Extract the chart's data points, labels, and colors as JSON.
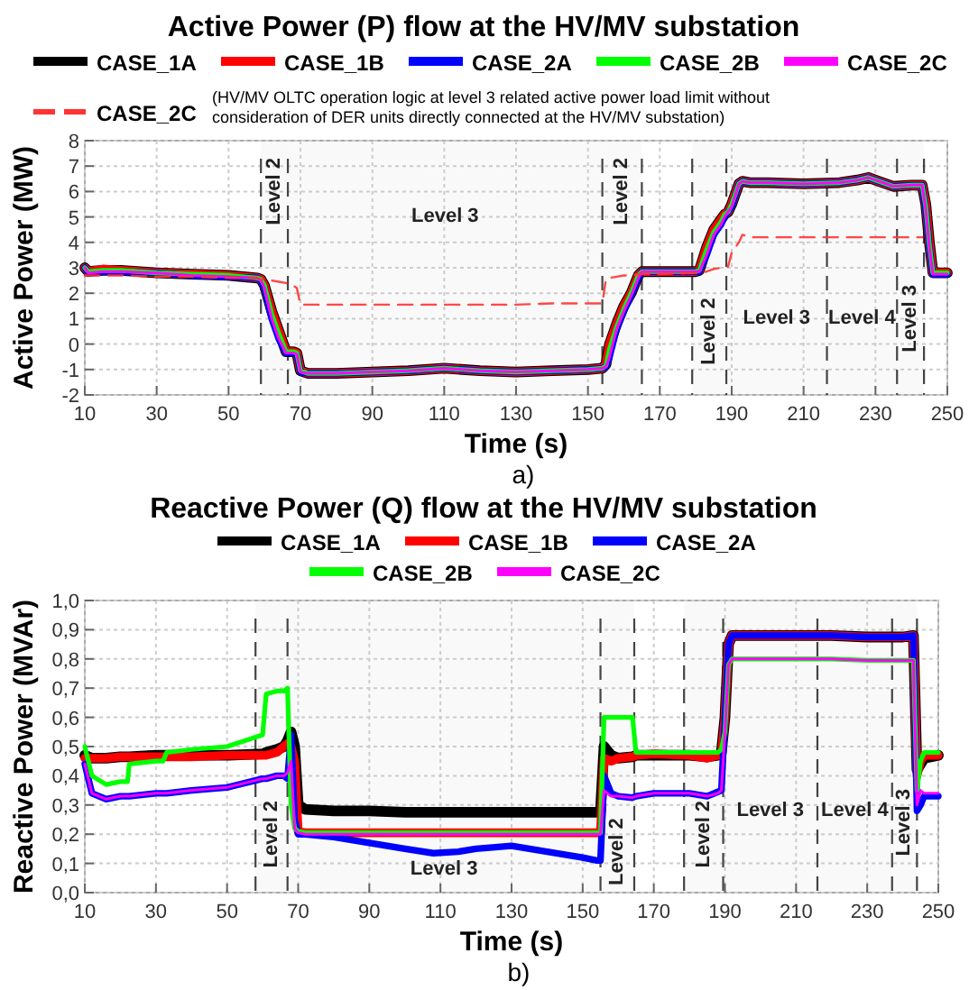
{
  "chart_data": [
    {
      "type": "line",
      "title": "Active Power (P) flow at the HV/MV substation",
      "xlabel": "Time (s)",
      "ylabel": "Active Power (MW)",
      "legend": "top",
      "grid": true,
      "line_style": "solid",
      "marker": "none",
      "xlim": [
        10,
        250
      ],
      "xticks": [
        10,
        30,
        50,
        70,
        90,
        110,
        130,
        150,
        170,
        190,
        210,
        230,
        250
      ],
      "ylim": [
        -2,
        8
      ],
      "yticks": [
        -2,
        -1,
        0,
        1,
        2,
        3,
        4,
        5,
        6,
        7,
        8
      ],
      "x": [
        10,
        11,
        15,
        20,
        30,
        40,
        50,
        58,
        59,
        60,
        62,
        64,
        66,
        67,
        68,
        69,
        70,
        72,
        80,
        90,
        100,
        110,
        120,
        130,
        140,
        150,
        154,
        155,
        156,
        158,
        160,
        162,
        164,
        165,
        170,
        180,
        181,
        183,
        185,
        187,
        188,
        189,
        190,
        192,
        193,
        195,
        200,
        210,
        220,
        225,
        228,
        230,
        235,
        240,
        243,
        244,
        245,
        246,
        250
      ],
      "series": [
        {
          "name": "CASE_1A",
          "color": "#000000",
          "values": [
            3.0,
            2.85,
            2.9,
            2.9,
            2.8,
            2.75,
            2.7,
            2.6,
            2.55,
            2.3,
            1.3,
            0.5,
            -0.3,
            -0.3,
            -0.3,
            -0.35,
            -1.05,
            -1.15,
            -1.15,
            -1.1,
            -1.05,
            -0.95,
            -1.05,
            -1.1,
            -1.05,
            -1.0,
            -0.95,
            -0.8,
            0.0,
            0.8,
            1.5,
            2.0,
            2.7,
            2.85,
            2.85,
            2.85,
            2.9,
            3.8,
            4.5,
            4.9,
            5.1,
            5.2,
            5.5,
            6.3,
            6.4,
            6.35,
            6.35,
            6.3,
            6.35,
            6.45,
            6.55,
            6.45,
            6.2,
            6.25,
            6.25,
            5.5,
            4.0,
            2.8,
            2.8
          ]
        },
        {
          "name": "CASE_1B",
          "color": "#ff0000",
          "values": [
            3.0,
            2.85,
            2.95,
            2.9,
            2.8,
            2.75,
            2.7,
            2.6,
            2.55,
            2.3,
            1.3,
            0.5,
            -0.3,
            -0.3,
            -0.3,
            -0.35,
            -1.05,
            -1.15,
            -1.15,
            -1.1,
            -1.05,
            -0.95,
            -1.05,
            -1.1,
            -1.05,
            -1.0,
            -0.95,
            -0.8,
            0.0,
            0.8,
            1.5,
            2.0,
            2.7,
            2.85,
            2.85,
            2.85,
            2.9,
            3.8,
            4.5,
            4.9,
            5.1,
            5.2,
            5.5,
            6.3,
            6.4,
            6.35,
            6.35,
            6.3,
            6.35,
            6.45,
            6.55,
            6.45,
            6.2,
            6.25,
            6.25,
            5.5,
            4.0,
            2.8,
            2.8
          ]
        },
        {
          "name": "CASE_2A",
          "color": "#0000ff",
          "values": [
            3.0,
            2.8,
            2.85,
            2.85,
            2.8,
            2.7,
            2.65,
            2.6,
            2.5,
            2.2,
            1.0,
            0.2,
            -0.35,
            -0.35,
            -0.35,
            -0.4,
            -1.1,
            -1.15,
            -1.15,
            -1.1,
            -1.05,
            -0.95,
            -1.05,
            -1.1,
            -1.05,
            -1.0,
            -0.95,
            -0.9,
            -0.5,
            0.6,
            1.3,
            1.9,
            2.6,
            2.85,
            2.85,
            2.85,
            2.85,
            3.5,
            4.3,
            4.7,
            5.0,
            5.2,
            5.4,
            6.3,
            6.4,
            6.35,
            6.35,
            6.3,
            6.35,
            6.45,
            6.55,
            6.45,
            6.2,
            6.25,
            6.25,
            5.3,
            3.8,
            2.75,
            2.75
          ]
        },
        {
          "name": "CASE_2B",
          "color": "#00ff00",
          "values": [
            3.0,
            2.85,
            2.9,
            2.9,
            2.8,
            2.75,
            2.7,
            2.6,
            2.55,
            2.3,
            1.2,
            0.4,
            -0.3,
            -0.3,
            -0.3,
            -0.35,
            -1.05,
            -1.15,
            -1.15,
            -1.1,
            -1.05,
            -0.95,
            -1.05,
            -1.1,
            -1.05,
            -1.0,
            -0.95,
            -0.85,
            -0.2,
            0.7,
            1.4,
            2.0,
            2.7,
            2.85,
            2.85,
            2.85,
            2.9,
            3.7,
            4.4,
            4.8,
            5.1,
            5.2,
            5.5,
            6.3,
            6.4,
            6.35,
            6.35,
            6.3,
            6.35,
            6.45,
            6.55,
            6.45,
            6.2,
            6.25,
            6.25,
            5.4,
            3.9,
            2.8,
            2.8
          ]
        },
        {
          "name": "CASE_2C",
          "color": "#ff00ff",
          "values": [
            3.0,
            2.8,
            2.85,
            2.85,
            2.8,
            2.7,
            2.65,
            2.6,
            2.5,
            2.2,
            1.0,
            0.2,
            -0.35,
            -0.35,
            -0.35,
            -0.4,
            -1.1,
            -1.15,
            -1.15,
            -1.1,
            -1.05,
            -0.95,
            -1.05,
            -1.1,
            -1.05,
            -1.0,
            -0.95,
            -0.9,
            -0.5,
            0.6,
            1.3,
            1.9,
            2.6,
            2.85,
            2.85,
            2.85,
            2.85,
            3.5,
            4.3,
            4.7,
            5.0,
            5.2,
            5.4,
            6.3,
            6.4,
            6.35,
            6.35,
            6.3,
            6.35,
            6.45,
            6.55,
            6.45,
            6.2,
            6.25,
            6.25,
            5.3,
            3.8,
            2.75,
            2.75
          ]
        },
        {
          "name": "CASE_2C (HV/MV OLTC operation logic at level 3 related active power load limit without consideration of DER units directly connected at the HV/MV substation)",
          "color": "#ff3333",
          "line_style": "dashed",
          "values": [
            2.7,
            2.7,
            2.7,
            2.7,
            2.65,
            2.65,
            2.6,
            2.6,
            2.55,
            2.55,
            2.5,
            2.45,
            2.4,
            2.35,
            2.3,
            2.2,
            1.55,
            1.55,
            1.55,
            1.55,
            1.55,
            1.55,
            1.55,
            1.55,
            1.6,
            1.6,
            1.6,
            2.55,
            2.6,
            2.65,
            2.7,
            2.7,
            2.75,
            2.75,
            2.75,
            2.8,
            2.8,
            2.85,
            2.95,
            3.0,
            3.0,
            3.05,
            3.6,
            4.0,
            4.3,
            4.2,
            4.2,
            4.2,
            4.2,
            4.2,
            4.2,
            4.2,
            4.2,
            4.2,
            4.2,
            null,
            null,
            null,
            null
          ]
        }
      ],
      "ref_lines": [
        {
          "axis": "x",
          "value": 59,
          "color": "#444444",
          "line_style": "dashed"
        },
        {
          "axis": "x",
          "value": 66.5,
          "color": "#444444",
          "line_style": "dashed"
        },
        {
          "axis": "x",
          "value": 154,
          "color": "#444444",
          "line_style": "dashed"
        },
        {
          "axis": "x",
          "value": 165,
          "color": "#444444",
          "line_style": "dashed"
        },
        {
          "axis": "x",
          "value": 179,
          "color": "#444444",
          "line_style": "dashed"
        },
        {
          "axis": "x",
          "value": 188.5,
          "color": "#444444",
          "line_style": "dashed"
        },
        {
          "axis": "x",
          "value": 216.5,
          "color": "#444444",
          "line_style": "dashed"
        },
        {
          "axis": "x",
          "value": 236,
          "color": "#444444",
          "line_style": "dashed"
        },
        {
          "axis": "x",
          "value": 243.5,
          "color": "#444444",
          "line_style": "dashed"
        }
      ],
      "bands": [
        {
          "axis": "x",
          "from": 59,
          "to": 66.5,
          "label": "Level 2"
        },
        {
          "axis": "x",
          "from": 66.5,
          "to": 154,
          "label": "Level 3"
        },
        {
          "axis": "x",
          "from": 154,
          "to": 165,
          "label": "Level 2"
        },
        {
          "axis": "x",
          "from": 179,
          "to": 188.5,
          "label": "Level 2"
        },
        {
          "axis": "x",
          "from": 188.5,
          "to": 216.5,
          "label": "Level 3"
        },
        {
          "axis": "x",
          "from": 216.5,
          "to": 236,
          "label": "Level 4"
        },
        {
          "axis": "x",
          "from": 236,
          "to": 243.5,
          "label": "Level 3"
        }
      ],
      "annotations": [
        "a)"
      ]
    },
    {
      "type": "line",
      "title": "Reactive Power (Q) flow at the HV/MV substation",
      "xlabel": "Time (s)",
      "ylabel": "Reactive Power (MVAr)",
      "legend": "top",
      "grid": true,
      "line_style": "solid",
      "marker": "none",
      "xlim": [
        10,
        250
      ],
      "xticks": [
        10,
        30,
        50,
        70,
        90,
        110,
        130,
        150,
        170,
        190,
        210,
        230,
        250
      ],
      "ylim": [
        0,
        1
      ],
      "yticks": [
        {
          "value": 0,
          "label": "0,0"
        },
        {
          "value": 0.1,
          "label": "0,1"
        },
        {
          "value": 0.2,
          "label": "0,2"
        },
        {
          "value": 0.3,
          "label": "0,3"
        },
        {
          "value": 0.4,
          "label": "0,4"
        },
        {
          "value": 0.5,
          "label": "0,5"
        },
        {
          "value": 0.6,
          "label": "0,6"
        },
        {
          "value": 0.7,
          "label": "0,7"
        },
        {
          "value": 0.8,
          "label": "0,8"
        },
        {
          "value": 0.9,
          "label": "0,9"
        },
        {
          "value": 1,
          "label": "1,0"
        }
      ],
      "x": [
        10,
        12,
        16,
        20,
        22,
        22.5,
        30,
        32,
        33,
        40,
        50,
        60,
        61,
        64,
        66,
        67,
        68,
        69,
        70,
        72,
        80,
        90,
        100,
        108,
        115,
        120,
        130,
        140,
        150,
        154,
        155,
        156,
        158,
        160,
        164,
        165,
        170,
        180,
        185,
        188,
        189,
        190,
        191,
        192,
        200,
        210,
        220,
        230,
        240,
        243,
        244,
        245,
        246,
        250
      ],
      "series": [
        {
          "name": "CASE_1A",
          "color": "#000000",
          "values": [
            0.47,
            0.46,
            0.46,
            0.465,
            0.465,
            0.465,
            0.47,
            0.47,
            0.47,
            0.47,
            0.47,
            0.475,
            0.48,
            0.49,
            0.5,
            0.52,
            0.55,
            0.5,
            0.3,
            0.285,
            0.28,
            0.28,
            0.275,
            0.275,
            0.275,
            0.275,
            0.275,
            0.275,
            0.275,
            0.275,
            0.28,
            0.5,
            0.47,
            0.46,
            0.465,
            0.47,
            0.47,
            0.47,
            0.465,
            0.47,
            0.48,
            0.6,
            0.85,
            0.88,
            0.88,
            0.88,
            0.88,
            0.875,
            0.875,
            0.88,
            0.42,
            0.44,
            0.46,
            0.47
          ]
        },
        {
          "name": "CASE_1B",
          "color": "#ff0000",
          "values": [
            0.46,
            0.46,
            0.46,
            0.465,
            0.465,
            0.465,
            0.465,
            0.465,
            0.465,
            0.465,
            0.47,
            0.47,
            0.47,
            0.48,
            0.5,
            0.51,
            0.5,
            0.45,
            0.21,
            0.205,
            0.205,
            0.205,
            0.205,
            0.205,
            0.205,
            0.205,
            0.205,
            0.205,
            0.205,
            0.205,
            0.205,
            0.46,
            0.45,
            0.46,
            0.465,
            0.47,
            0.475,
            0.47,
            0.46,
            0.47,
            0.47,
            0.6,
            0.85,
            0.88,
            0.88,
            0.88,
            0.88,
            0.875,
            0.875,
            0.88,
            0.4,
            0.45,
            0.47,
            0.47
          ]
        },
        {
          "name": "CASE_2A",
          "color": "#0000ff",
          "values": [
            0.44,
            0.34,
            0.32,
            0.33,
            0.33,
            0.33,
            0.34,
            0.34,
            0.34,
            0.35,
            0.36,
            0.39,
            0.39,
            0.4,
            0.4,
            0.39,
            0.54,
            0.25,
            0.2,
            0.2,
            0.19,
            0.17,
            0.15,
            0.135,
            0.14,
            0.15,
            0.16,
            0.14,
            0.12,
            0.11,
            0.11,
            0.4,
            0.34,
            0.33,
            0.325,
            0.33,
            0.34,
            0.34,
            0.33,
            0.345,
            0.35,
            0.6,
            0.85,
            0.88,
            0.88,
            0.88,
            0.88,
            0.875,
            0.875,
            0.88,
            0.28,
            0.3,
            0.33,
            0.33
          ]
        },
        {
          "name": "CASE_2B",
          "color": "#00ff00",
          "values": [
            0.5,
            0.4,
            0.37,
            0.38,
            0.38,
            0.44,
            0.45,
            0.45,
            0.48,
            0.49,
            0.5,
            0.54,
            0.68,
            0.69,
            0.69,
            0.7,
            0.3,
            0.22,
            0.21,
            0.205,
            0.205,
            0.205,
            0.205,
            0.205,
            0.205,
            0.205,
            0.205,
            0.205,
            0.205,
            0.205,
            0.205,
            0.6,
            0.6,
            0.6,
            0.6,
            0.48,
            0.48,
            0.48,
            0.48,
            0.48,
            0.49,
            0.55,
            0.78,
            0.8,
            0.8,
            0.8,
            0.8,
            0.795,
            0.795,
            0.795,
            0.35,
            0.45,
            0.48,
            0.48
          ]
        },
        {
          "name": "CASE_2C",
          "color": "#ff00ff",
          "values": [
            0.44,
            0.34,
            0.32,
            0.33,
            0.33,
            0.33,
            0.34,
            0.34,
            0.34,
            0.35,
            0.36,
            0.39,
            0.39,
            0.4,
            0.4,
            0.41,
            0.45,
            0.22,
            0.205,
            0.2,
            0.2,
            0.2,
            0.2,
            0.2,
            0.2,
            0.2,
            0.2,
            0.2,
            0.2,
            0.2,
            0.2,
            0.35,
            0.33,
            0.33,
            0.325,
            0.33,
            0.34,
            0.34,
            0.33,
            0.34,
            0.35,
            0.55,
            0.78,
            0.8,
            0.8,
            0.8,
            0.8,
            0.795,
            0.795,
            0.795,
            0.3,
            0.35,
            0.34,
            0.34
          ]
        }
      ],
      "ref_lines": [
        {
          "axis": "x",
          "value": 58,
          "color": "#444444",
          "line_style": "dashed"
        },
        {
          "axis": "x",
          "value": 67,
          "color": "#444444",
          "line_style": "dashed"
        },
        {
          "axis": "x",
          "value": 155,
          "color": "#444444",
          "line_style": "dashed"
        },
        {
          "axis": "x",
          "value": 164.5,
          "color": "#444444",
          "line_style": "dashed"
        },
        {
          "axis": "x",
          "value": 178.5,
          "color": "#444444",
          "line_style": "dashed"
        },
        {
          "axis": "x",
          "value": 189.5,
          "color": "#444444",
          "line_style": "dashed"
        },
        {
          "axis": "x",
          "value": 216,
          "color": "#444444",
          "line_style": "dashed"
        },
        {
          "axis": "x",
          "value": 237,
          "color": "#444444",
          "line_style": "dashed"
        },
        {
          "axis": "x",
          "value": 244,
          "color": "#444444",
          "line_style": "dashed"
        }
      ],
      "bands": [
        {
          "axis": "x",
          "from": 58,
          "to": 67,
          "label": "Level 2"
        },
        {
          "axis": "x",
          "from": 67,
          "to": 155,
          "label": "Level 3"
        },
        {
          "axis": "x",
          "from": 155,
          "to": 164.5,
          "label": "Level 2"
        },
        {
          "axis": "x",
          "from": 178.5,
          "to": 189.5,
          "label": "Level 2"
        },
        {
          "axis": "x",
          "from": 189.5,
          "to": 216,
          "label": "Level 3"
        },
        {
          "axis": "x",
          "from": 216,
          "to": 237,
          "label": "Level 4"
        },
        {
          "axis": "x",
          "from": 237,
          "to": 244,
          "label": "Level 3"
        }
      ],
      "annotations": [
        "b)"
      ]
    }
  ]
}
